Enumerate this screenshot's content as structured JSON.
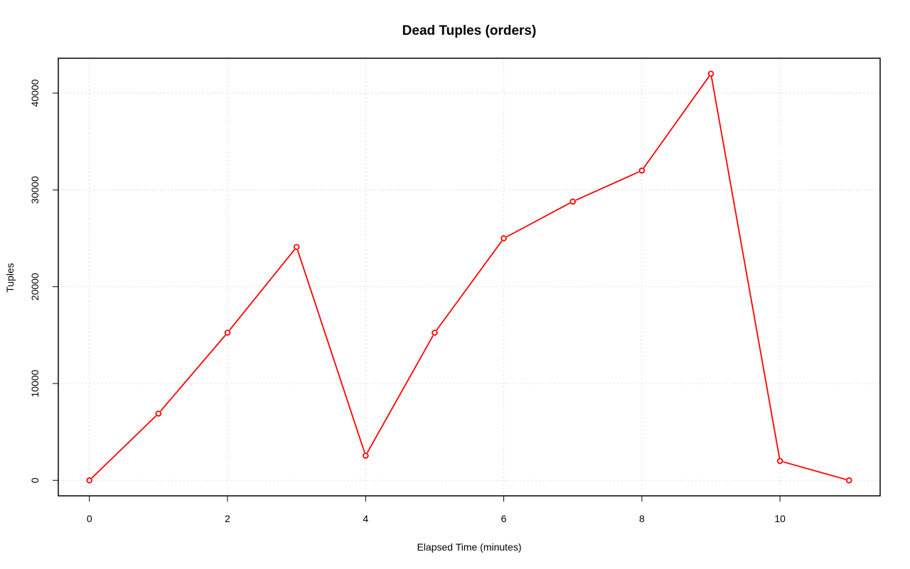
{
  "chart_data": {
    "type": "line",
    "title": "Dead Tuples (orders)",
    "xlabel": "Elapsed Time (minutes)",
    "ylabel": "Tuples",
    "x": [
      0,
      1,
      2,
      3,
      4,
      5,
      6,
      7,
      8,
      9,
      10,
      11
    ],
    "series": [
      {
        "values": [
          0,
          6900,
          15250,
          24100,
          2550,
          15250,
          25000,
          28800,
          32000,
          42000,
          2000,
          0
        ],
        "color": "#ff0000"
      }
    ],
    "xlim": [
      -0.45,
      11.45
    ],
    "ylim": [
      -1600,
      43600
    ],
    "x_ticks": [
      0,
      2,
      4,
      6,
      8,
      10
    ],
    "x_tick_labels": [
      "0",
      "2",
      "4",
      "6",
      "8",
      "10"
    ],
    "y_ticks": [
      0,
      10000,
      20000,
      30000,
      40000
    ],
    "y_tick_labels": [
      "0",
      "10000",
      "20000",
      "30000",
      "40000"
    ],
    "grid": true,
    "grid_color": "#d3d3d3",
    "point_marker": "open-circle"
  }
}
